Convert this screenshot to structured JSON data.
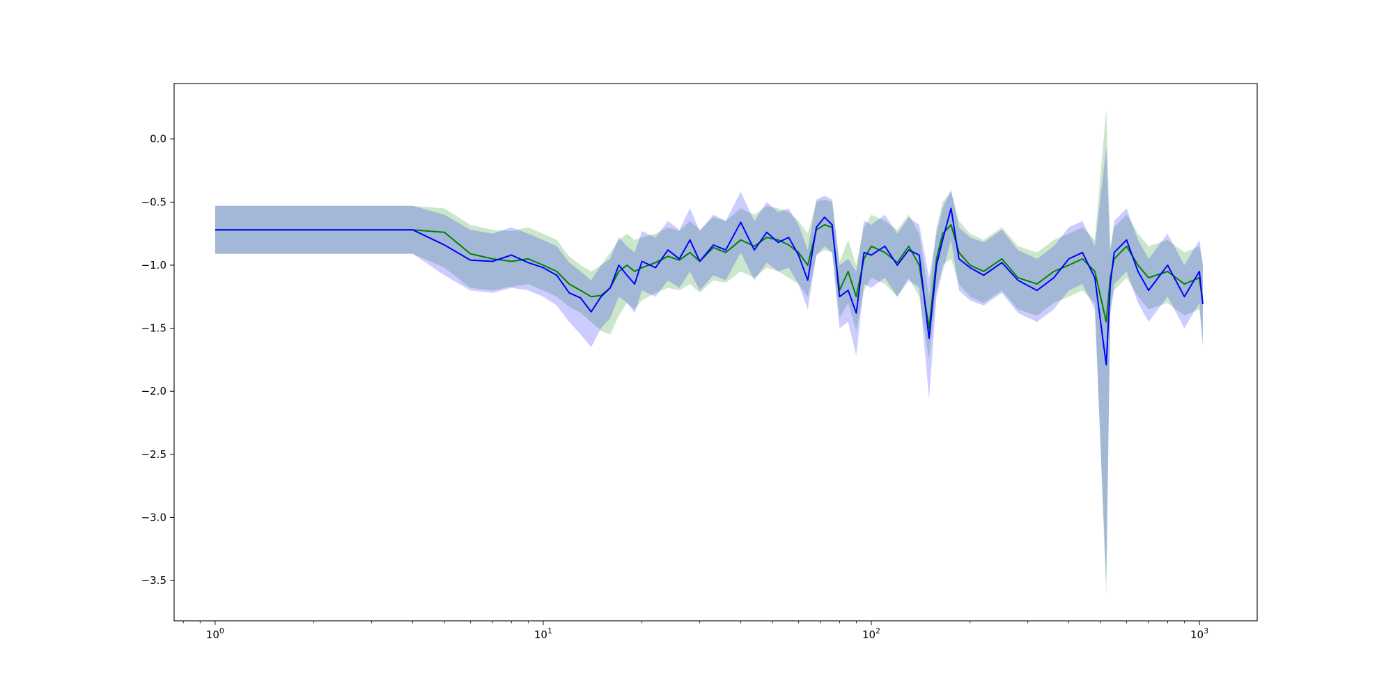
{
  "chart_data": {
    "type": "line",
    "xscale": "log",
    "xlim": [
      0.75,
      1500
    ],
    "ylim": [
      -3.82,
      0.44
    ],
    "grid": false,
    "xticks": [
      {
        "value": 1,
        "base": "10",
        "exp": "0"
      },
      {
        "value": 10,
        "base": "10",
        "exp": "1"
      },
      {
        "value": 100,
        "base": "10",
        "exp": "2"
      },
      {
        "value": 1000,
        "base": "10",
        "exp": "3"
      }
    ],
    "yticks": [
      {
        "value": 0.0,
        "label": "0.0"
      },
      {
        "value": -0.5,
        "label": "−0.5"
      },
      {
        "value": -1.0,
        "label": "−1.0"
      },
      {
        "value": -1.5,
        "label": "−1.5"
      },
      {
        "value": -2.0,
        "label": "−2.0"
      },
      {
        "value": -2.5,
        "label": "−2.5"
      },
      {
        "value": -3.0,
        "label": "−3.0"
      },
      {
        "value": -3.5,
        "label": "−3.5"
      }
    ],
    "series": [
      {
        "color": "#008000",
        "band_color": "#008000",
        "x": [
          1,
          4,
          5,
          6,
          7,
          8,
          9,
          10,
          11,
          12,
          13,
          14,
          15,
          16,
          17,
          18,
          19,
          20,
          22,
          24,
          26,
          28,
          30,
          33,
          36,
          40,
          44,
          48,
          52,
          56,
          60,
          64,
          68,
          72,
          76,
          80,
          85,
          90,
          95,
          100,
          110,
          120,
          130,
          140,
          150,
          158,
          165,
          175,
          185,
          200,
          220,
          250,
          280,
          320,
          360,
          400,
          440,
          480,
          520,
          535,
          550,
          600,
          650,
          700,
          800,
          900,
          1000,
          1024
        ],
        "y": [
          -0.72,
          -0.72,
          -0.74,
          -0.91,
          -0.95,
          -0.97,
          -0.95,
          -1.0,
          -1.05,
          -1.15,
          -1.2,
          -1.25,
          -1.24,
          -1.18,
          -1.05,
          -1.0,
          -1.05,
          -1.02,
          -0.98,
          -0.93,
          -0.96,
          -0.9,
          -0.97,
          -0.86,
          -0.9,
          -0.8,
          -0.85,
          -0.78,
          -0.8,
          -0.84,
          -0.9,
          -1.0,
          -0.72,
          -0.68,
          -0.7,
          -1.2,
          -1.05,
          -1.25,
          -0.95,
          -0.85,
          -0.9,
          -0.98,
          -0.85,
          -1.0,
          -1.5,
          -0.95,
          -0.75,
          -0.68,
          -0.9,
          -1.0,
          -1.05,
          -0.95,
          -1.1,
          -1.15,
          -1.05,
          -1.0,
          -0.95,
          -1.05,
          -1.45,
          -1.1,
          -0.95,
          -0.85,
          -1.0,
          -1.1,
          -1.05,
          -1.15,
          -1.1,
          -1.3
        ],
        "lower": [
          -0.91,
          -0.91,
          -1.02,
          -1.18,
          -1.2,
          -1.17,
          -1.15,
          -1.2,
          -1.25,
          -1.33,
          -1.38,
          -1.45,
          -1.52,
          -1.55,
          -1.4,
          -1.3,
          -1.35,
          -1.28,
          -1.22,
          -1.18,
          -1.2,
          -1.15,
          -1.22,
          -1.12,
          -1.14,
          -1.05,
          -1.1,
          -1.02,
          -1.05,
          -1.1,
          -1.15,
          -1.25,
          -0.92,
          -0.88,
          -0.9,
          -1.42,
          -1.3,
          -1.52,
          -1.2,
          -1.1,
          -1.15,
          -1.25,
          -1.1,
          -1.25,
          -1.75,
          -1.2,
          -1.0,
          -0.95,
          -1.15,
          -1.25,
          -1.3,
          -1.2,
          -1.35,
          -1.4,
          -1.3,
          -1.25,
          -1.2,
          -1.3,
          -3.62,
          -1.35,
          -1.2,
          -1.1,
          -1.25,
          -1.35,
          -1.3,
          -1.4,
          -1.35,
          -1.6
        ],
        "upper": [
          -0.53,
          -0.53,
          -0.55,
          -0.68,
          -0.72,
          -0.73,
          -0.7,
          -0.75,
          -0.8,
          -0.93,
          -1.0,
          -1.05,
          -1.0,
          -0.9,
          -0.8,
          -0.75,
          -0.8,
          -0.78,
          -0.75,
          -0.7,
          -0.73,
          -0.65,
          -0.72,
          -0.62,
          -0.65,
          -0.55,
          -0.6,
          -0.53,
          -0.55,
          -0.58,
          -0.65,
          -0.75,
          -0.5,
          -0.48,
          -0.5,
          -0.98,
          -0.8,
          -1.0,
          -0.7,
          -0.6,
          -0.65,
          -0.72,
          -0.6,
          -0.75,
          -1.25,
          -0.7,
          -0.5,
          -0.42,
          -0.65,
          -0.75,
          -0.8,
          -0.7,
          -0.85,
          -0.9,
          -0.8,
          -0.75,
          -0.7,
          -0.8,
          0.24,
          -0.85,
          -0.7,
          -0.6,
          -0.75,
          -0.85,
          -0.8,
          -0.9,
          -0.85,
          -1.0
        ]
      },
      {
        "color": "#0000ff",
        "band_color": "#0000ff",
        "x": [
          1,
          4,
          5,
          6,
          7,
          8,
          9,
          10,
          11,
          12,
          13,
          14,
          15,
          16,
          17,
          18,
          19,
          20,
          22,
          24,
          26,
          28,
          30,
          33,
          36,
          40,
          44,
          48,
          52,
          56,
          60,
          64,
          68,
          72,
          76,
          80,
          85,
          90,
          95,
          100,
          110,
          120,
          130,
          140,
          150,
          158,
          165,
          175,
          185,
          200,
          220,
          250,
          280,
          320,
          360,
          400,
          440,
          480,
          520,
          535,
          550,
          600,
          650,
          700,
          800,
          900,
          1000,
          1024
        ],
        "y": [
          -0.72,
          -0.72,
          -0.84,
          -0.96,
          -0.97,
          -0.92,
          -0.98,
          -1.02,
          -1.08,
          -1.22,
          -1.26,
          -1.37,
          -1.25,
          -1.18,
          -1.0,
          -1.08,
          -1.15,
          -0.97,
          -1.02,
          -0.88,
          -0.95,
          -0.8,
          -0.97,
          -0.84,
          -0.88,
          -0.66,
          -0.88,
          -0.74,
          -0.82,
          -0.78,
          -0.92,
          -1.12,
          -0.7,
          -0.62,
          -0.68,
          -1.25,
          -1.2,
          -1.38,
          -0.9,
          -0.92,
          -0.85,
          -1.0,
          -0.88,
          -0.92,
          -1.58,
          -1.0,
          -0.8,
          -0.55,
          -0.95,
          -1.02,
          -1.08,
          -0.98,
          -1.12,
          -1.2,
          -1.1,
          -0.95,
          -0.9,
          -1.1,
          -1.79,
          -1.15,
          -0.9,
          -0.8,
          -1.05,
          -1.2,
          -1.0,
          -1.25,
          -1.05,
          -1.31
        ],
        "lower": [
          -0.91,
          -0.91,
          -1.08,
          -1.2,
          -1.22,
          -1.18,
          -1.2,
          -1.25,
          -1.32,
          -1.45,
          -1.55,
          -1.65,
          -1.5,
          -1.42,
          -1.25,
          -1.3,
          -1.38,
          -1.2,
          -1.25,
          -1.12,
          -1.18,
          -1.05,
          -1.2,
          -1.08,
          -1.12,
          -0.9,
          -1.12,
          -0.98,
          -1.05,
          -1.02,
          -1.15,
          -1.35,
          -0.92,
          -0.85,
          -0.9,
          -1.5,
          -1.45,
          -1.72,
          -1.15,
          -1.18,
          -1.1,
          -1.25,
          -1.12,
          -1.18,
          -2.06,
          -1.25,
          -1.05,
          -0.8,
          -1.2,
          -1.28,
          -1.32,
          -1.22,
          -1.38,
          -1.45,
          -1.35,
          -1.2,
          -1.15,
          -1.35,
          -3.5,
          -1.4,
          -1.15,
          -1.05,
          -1.3,
          -1.45,
          -1.25,
          -1.5,
          -1.3,
          -1.65
        ],
        "upper": [
          -0.53,
          -0.53,
          -0.6,
          -0.72,
          -0.75,
          -0.7,
          -0.75,
          -0.8,
          -0.85,
          -0.98,
          -1.05,
          -1.12,
          -1.0,
          -0.95,
          -0.78,
          -0.85,
          -0.9,
          -0.73,
          -0.78,
          -0.65,
          -0.72,
          -0.55,
          -0.73,
          -0.6,
          -0.65,
          -0.42,
          -0.65,
          -0.5,
          -0.58,
          -0.55,
          -0.68,
          -0.88,
          -0.48,
          -0.45,
          -0.48,
          -1.0,
          -0.95,
          -1.05,
          -0.65,
          -0.68,
          -0.6,
          -0.75,
          -0.62,
          -0.68,
          -1.1,
          -0.75,
          -0.55,
          -0.4,
          -0.7,
          -0.78,
          -0.82,
          -0.72,
          -0.88,
          -0.95,
          -0.85,
          -0.7,
          -0.65,
          -0.85,
          -0.07,
          -0.9,
          -0.65,
          -0.55,
          -0.8,
          -0.95,
          -0.75,
          -1.0,
          -0.8,
          -0.98
        ]
      }
    ]
  }
}
